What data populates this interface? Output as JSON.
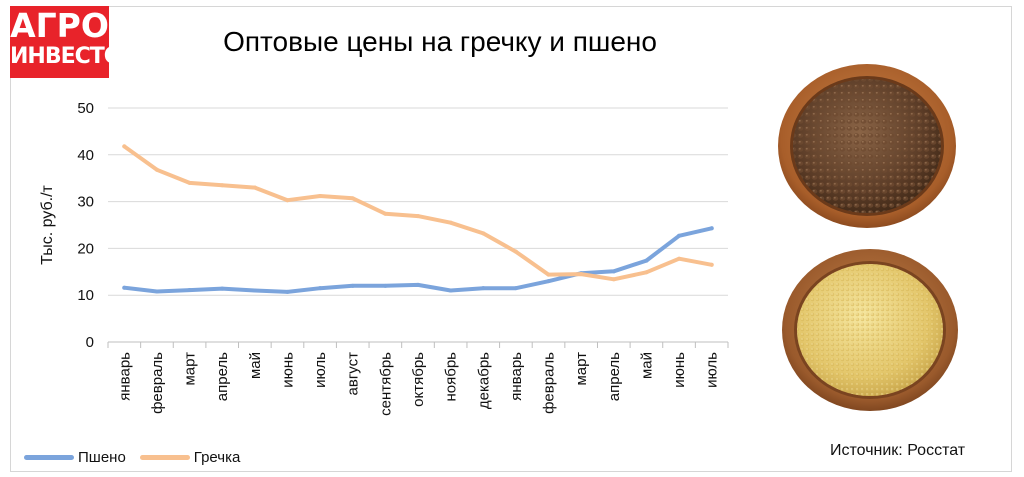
{
  "brand": {
    "line1": "АГРО",
    "line2": "ИНВЕСТОР",
    "color": "#e8232a"
  },
  "chart_data": {
    "type": "line",
    "title": "Оптовые цены на гречку и пшено",
    "ylabel": "Тыс. руб./т",
    "xlabel": "",
    "ylim": [
      0,
      50
    ],
    "yticks": [
      "0",
      "10",
      "20",
      "30",
      "40",
      "50"
    ],
    "grid": true,
    "legend_position": "bottom-left",
    "categories": [
      "январь",
      "февраль",
      "март",
      "апрель",
      "май",
      "июнь",
      "июль",
      "август",
      "сентябрь",
      "октябрь",
      "ноябрь",
      "декабрь",
      "январь",
      "февраль",
      "март",
      "апрель",
      "май",
      "июнь",
      "июль"
    ],
    "series": [
      {
        "name": "Пшено",
        "color": "#7ba4dc",
        "values": [
          11.6,
          10.8,
          11.1,
          11.4,
          11.0,
          10.7,
          11.5,
          12.0,
          12.0,
          12.2,
          11.0,
          11.5,
          11.5,
          13.0,
          14.7,
          15.1,
          17.4,
          22.7,
          24.3
        ]
      },
      {
        "name": "Гречка",
        "color": "#f8c08f",
        "values": [
          41.8,
          36.8,
          34.0,
          33.5,
          33.0,
          30.3,
          31.2,
          30.7,
          27.4,
          26.9,
          25.5,
          23.2,
          19.3,
          14.4,
          14.5,
          13.4,
          14.9,
          17.8,
          16.5
        ]
      }
    ]
  },
  "source_text": "Источник: Росстат"
}
